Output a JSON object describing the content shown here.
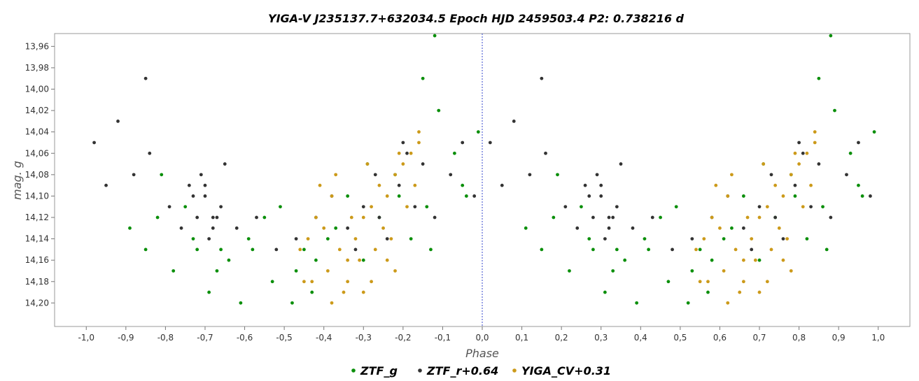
{
  "chart_data": {
    "type": "scatter",
    "title": "YIGA-V J235137.7+632034.5   Epoch HJD 2459503.4   P2: 0.738216 d",
    "xlabel": "Phase",
    "ylabel": "mag. g",
    "xlim": [
      -1.08,
      1.08
    ],
    "ylim": [
      14.222,
      13.948
    ],
    "y_inverted": true,
    "grid": false,
    "zero_line": true,
    "x_ticks": [
      -1.0,
      -0.9,
      -0.8,
      -0.7,
      -0.6,
      -0.5,
      -0.4,
      -0.3,
      -0.2,
      -0.1,
      0.0,
      0.1,
      0.2,
      0.3,
      0.4,
      0.5,
      0.6,
      0.7,
      0.8,
      0.9,
      1.0
    ],
    "x_tick_labels": [
      "-1,0",
      "-0,9",
      "-0,8",
      "-0,7",
      "-0,6",
      "-0,5",
      "-0,4",
      "-0,3",
      "-0,2",
      "-0,1",
      "0,0",
      "0,1",
      "0,2",
      "0,3",
      "0,4",
      "0,5",
      "0,6",
      "0,7",
      "0,8",
      "0,9",
      "1,0"
    ],
    "y_ticks": [
      13.96,
      13.98,
      14.0,
      14.02,
      14.04,
      14.06,
      14.08,
      14.1,
      14.12,
      14.14,
      14.16,
      14.18,
      14.2
    ],
    "y_tick_labels": [
      "13,96",
      "13,98",
      "14,00",
      "14,02",
      "14,04",
      "14,06",
      "14,08",
      "14,10",
      "14,12",
      "14,14",
      "14,16",
      "14,18",
      "14,20"
    ],
    "legend_position": "bottom",
    "series": [
      {
        "name": "ZTF_g",
        "color": "#0b8f0b",
        "x": [
          0.11,
          0.15,
          0.19,
          0.22,
          0.27,
          0.31,
          0.36,
          0.39,
          0.42,
          0.45,
          0.49,
          0.53,
          0.57,
          0.61,
          0.66,
          0.7,
          0.74,
          0.78,
          0.82,
          0.86,
          0.89,
          0.93,
          0.96,
          0.99,
          0.18,
          0.25,
          0.33,
          0.41,
          0.47,
          0.55,
          0.63,
          0.71,
          0.79,
          0.87,
          0.95,
          0.52,
          0.58,
          0.34,
          0.28,
          0.88,
          0.85
        ],
        "y": [
          14.13,
          14.15,
          14.08,
          14.17,
          14.14,
          14.19,
          14.16,
          14.2,
          14.15,
          14.12,
          14.11,
          14.17,
          14.19,
          14.14,
          14.1,
          14.16,
          14.12,
          14.08,
          14.14,
          14.11,
          14.02,
          14.06,
          14.1,
          14.04,
          14.12,
          14.11,
          14.17,
          14.14,
          14.18,
          14.15,
          14.13,
          14.07,
          14.1,
          14.15,
          14.09,
          14.2,
          14.16,
          14.15,
          14.15,
          13.95,
          13.99
        ]
      },
      {
        "name": "ZTF_r+0.64",
        "color": "#333333",
        "x": [
          0.02,
          0.05,
          0.08,
          0.12,
          0.16,
          0.21,
          0.26,
          0.28,
          0.3,
          0.32,
          0.34,
          0.29,
          0.31,
          0.33,
          0.27,
          0.35,
          0.38,
          0.43,
          0.48,
          0.53,
          0.58,
          0.62,
          0.66,
          0.7,
          0.73,
          0.76,
          0.79,
          0.81,
          0.83,
          0.85,
          0.88,
          0.92,
          0.95,
          0.98,
          0.3,
          0.32,
          0.24,
          0.68,
          0.74,
          0.8,
          0.15
        ],
        "y": [
          14.05,
          14.09,
          14.03,
          14.08,
          14.06,
          14.11,
          14.09,
          14.12,
          14.1,
          14.13,
          14.11,
          14.08,
          14.14,
          14.12,
          14.1,
          14.07,
          14.13,
          14.12,
          14.15,
          14.14,
          14.12,
          14.1,
          14.13,
          14.11,
          14.08,
          14.14,
          14.09,
          14.06,
          14.11,
          14.07,
          14.12,
          14.08,
          14.05,
          14.1,
          14.09,
          14.12,
          14.13,
          14.15,
          14.12,
          14.05,
          13.99
        ]
      },
      {
        "name": "YIGA_CV+0.31",
        "color": "#cc9a1a",
        "x": [
          0.54,
          0.56,
          0.58,
          0.6,
          0.62,
          0.64,
          0.66,
          0.68,
          0.7,
          0.72,
          0.74,
          0.76,
          0.78,
          0.8,
          0.82,
          0.84,
          0.57,
          0.61,
          0.65,
          0.69,
          0.73,
          0.77,
          0.81,
          0.83,
          0.59,
          0.63,
          0.67,
          0.71,
          0.75,
          0.79,
          0.55,
          0.62,
          0.7,
          0.78,
          0.84,
          0.66,
          0.72,
          0.76
        ],
        "y": [
          14.15,
          14.14,
          14.12,
          14.13,
          14.1,
          14.15,
          14.16,
          14.14,
          14.12,
          14.11,
          14.09,
          14.1,
          14.08,
          14.07,
          14.06,
          14.04,
          14.18,
          14.17,
          14.19,
          14.16,
          14.15,
          14.14,
          14.11,
          14.09,
          14.09,
          14.08,
          14.12,
          14.07,
          14.13,
          14.06,
          14.18,
          14.2,
          14.19,
          14.17,
          14.05,
          14.18,
          14.18,
          14.16
        ]
      }
    ]
  }
}
